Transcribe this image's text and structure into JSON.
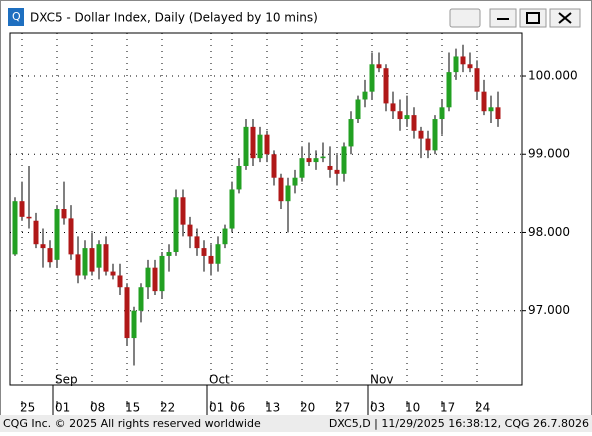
{
  "window": {
    "title": "DXC5 - Dollar Index, Daily (Delayed by 10 mins)"
  },
  "footer": {
    "left": "CQG Inc. © 2025 All rights reserved worldwide",
    "right": "DXC5,D | 11/29/2025 16:38:12, CQG 26.7.8026"
  },
  "chart_data": {
    "type": "candlestick",
    "categories": [
      null,
      "25",
      null,
      null,
      null,
      null,
      "01",
      null,
      null,
      null,
      null,
      "08",
      null,
      null,
      null,
      null,
      "15",
      null,
      null,
      null,
      null,
      "22",
      null,
      null,
      null,
      null,
      null,
      null,
      "01",
      null,
      null,
      "06",
      null,
      null,
      null,
      null,
      "13",
      null,
      null,
      null,
      null,
      "20",
      null,
      null,
      null,
      null,
      "27",
      null,
      null,
      null,
      null,
      "03",
      null,
      null,
      null,
      null,
      "10",
      null,
      null,
      null,
      null,
      "17",
      null,
      null,
      null,
      null,
      "24",
      null,
      null,
      null
    ],
    "months": [
      null,
      null,
      null,
      null,
      null,
      null,
      "Sep",
      null,
      null,
      null,
      null,
      null,
      null,
      null,
      null,
      null,
      null,
      null,
      null,
      null,
      null,
      null,
      null,
      null,
      null,
      null,
      null,
      null,
      "Oct",
      null,
      null,
      null,
      null,
      null,
      null,
      null,
      null,
      null,
      null,
      null,
      null,
      null,
      null,
      null,
      null,
      null,
      null,
      null,
      null,
      null,
      null,
      "Nov",
      null,
      null,
      null,
      null,
      null,
      null,
      null,
      null,
      null,
      null,
      null,
      null,
      null,
      null,
      null,
      null,
      null,
      null
    ],
    "open": [
      97.72,
      98.4,
      98.2,
      98.15,
      97.85,
      97.8,
      97.65,
      98.3,
      98.18,
      97.72,
      97.45,
      97.8,
      97.55,
      97.85,
      97.5,
      97.45,
      97.3,
      96.65,
      97.0,
      97.3,
      97.55,
      97.25,
      97.7,
      97.75,
      98.45,
      98.1,
      97.95,
      97.8,
      97.7,
      97.6,
      97.85,
      98.05,
      98.55,
      98.85,
      99.35,
      98.95,
      99.25,
      99.0,
      98.7,
      98.4,
      98.6,
      98.7,
      98.95,
      98.9,
      98.95,
      98.85,
      98.8,
      98.75,
      99.1,
      99.45,
      99.7,
      99.8,
      100.15,
      100.1,
      99.65,
      99.55,
      99.45,
      99.5,
      99.3,
      99.2,
      99.05,
      99.45,
      99.6,
      100.05,
      100.25,
      100.15,
      100.1,
      99.8,
      99.55,
      99.6
    ],
    "high": [
      98.45,
      98.65,
      98.85,
      98.25,
      98.05,
      97.9,
      98.35,
      98.65,
      98.35,
      97.95,
      97.9,
      98.0,
      97.9,
      97.95,
      97.6,
      97.6,
      97.35,
      97.05,
      97.35,
      97.65,
      97.65,
      97.75,
      97.85,
      98.55,
      98.55,
      98.2,
      98.05,
      97.9,
      97.85,
      97.95,
      98.1,
      98.65,
      98.95,
      99.45,
      99.45,
      99.35,
      99.3,
      99.05,
      98.75,
      98.7,
      98.8,
      99.1,
      99.15,
      99.05,
      99.15,
      99.1,
      99.0,
      99.15,
      99.55,
      99.75,
      99.95,
      100.3,
      100.3,
      100.15,
      99.8,
      99.7,
      99.75,
      99.6,
      99.35,
      99.3,
      99.5,
      99.7,
      100.3,
      100.35,
      100.4,
      100.3,
      100.2,
      99.95,
      99.75,
      99.8
    ],
    "low": [
      97.7,
      98.15,
      98.05,
      97.8,
      97.55,
      97.55,
      97.55,
      98.1,
      97.65,
      97.35,
      97.4,
      97.45,
      97.4,
      97.45,
      97.4,
      97.2,
      96.55,
      96.3,
      96.85,
      97.15,
      97.2,
      97.15,
      97.5,
      97.7,
      97.95,
      97.8,
      97.7,
      97.5,
      97.45,
      97.5,
      97.8,
      98.0,
      98.5,
      98.8,
      98.85,
      98.9,
      98.9,
      98.6,
      98.3,
      98.0,
      98.5,
      98.65,
      98.85,
      98.8,
      98.9,
      98.7,
      98.6,
      98.65,
      99.0,
      99.4,
      99.6,
      99.7,
      100.05,
      99.55,
      99.45,
      99.3,
      99.35,
      99.2,
      98.95,
      98.95,
      99.0,
      99.25,
      99.55,
      99.95,
      100.05,
      100.05,
      99.7,
      99.5,
      99.4,
      99.35
    ],
    "close": [
      98.4,
      98.2,
      98.18,
      97.85,
      97.8,
      97.62,
      98.3,
      98.18,
      97.72,
      97.45,
      97.8,
      97.5,
      97.85,
      97.5,
      97.45,
      97.3,
      96.65,
      97.0,
      97.3,
      97.55,
      97.25,
      97.7,
      97.75,
      98.45,
      98.1,
      97.95,
      97.8,
      97.7,
      97.6,
      97.85,
      98.05,
      98.55,
      98.85,
      99.35,
      98.95,
      99.25,
      99.0,
      98.7,
      98.4,
      98.6,
      98.7,
      98.95,
      98.9,
      98.95,
      98.97,
      98.8,
      98.75,
      99.1,
      99.45,
      99.7,
      99.8,
      100.15,
      100.1,
      99.65,
      99.55,
      99.45,
      99.5,
      99.3,
      99.2,
      99.05,
      99.45,
      99.6,
      100.05,
      100.25,
      100.15,
      100.1,
      99.8,
      99.55,
      99.6,
      99.45
    ],
    "up_color": "#22a022",
    "down_color": "#b01818",
    "ylim": [
      96.05,
      100.55
    ],
    "yticks": [
      {
        "value": 97,
        "label": "97.000"
      },
      {
        "value": 98,
        "label": "98.000"
      },
      {
        "value": 99,
        "label": "99.000"
      },
      {
        "value": 100,
        "label": "100.000"
      }
    ],
    "grid": true
  }
}
